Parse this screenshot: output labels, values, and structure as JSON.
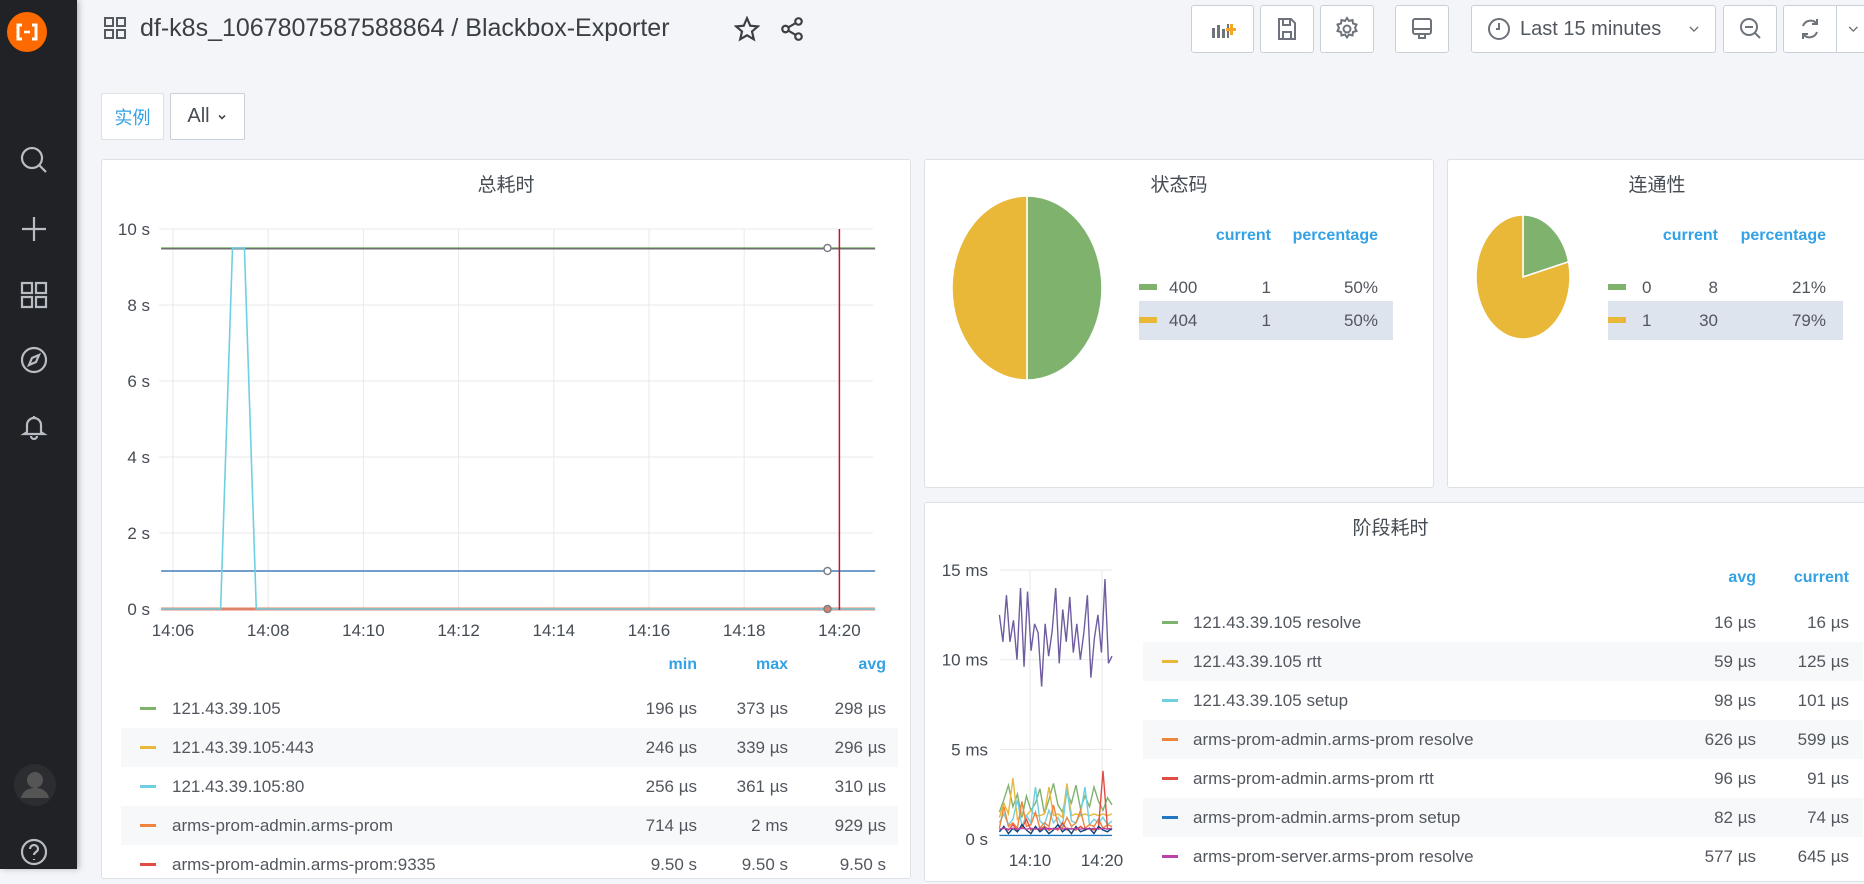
{
  "sidebar": {
    "items": [
      {
        "name": "search",
        "icon": "search-icon"
      },
      {
        "name": "create",
        "icon": "plus-icon"
      },
      {
        "name": "dashboards",
        "icon": "grid-icon"
      },
      {
        "name": "explore",
        "icon": "compass-icon"
      },
      {
        "name": "alerting",
        "icon": "bell-icon"
      }
    ],
    "bottom": [
      {
        "icon": "avatar"
      },
      {
        "icon": "help-icon"
      }
    ]
  },
  "header": {
    "title": "df-k8s_1067807587588864 / Blackbox-Exporter",
    "time_range": "Last 15 minutes"
  },
  "variables": {
    "label": "实例",
    "value": "All"
  },
  "colors": {
    "accent": "#33a2e5",
    "brand": "#ff6a00",
    "green": "#7eb26d",
    "yellow": "#eab839",
    "highlight": "#dde4ed"
  },
  "panels": {
    "total": {
      "title": "总耗时",
      "headers": [
        "min",
        "max",
        "avg"
      ],
      "rows": [
        {
          "name": "121.43.39.105",
          "color": "#7eb26d",
          "min": "196 µs",
          "max": "373 µs",
          "avg": "298 µs"
        },
        {
          "name": "121.43.39.105:443",
          "color": "#eab839",
          "min": "246 µs",
          "max": "339 µs",
          "avg": "296 µs"
        },
        {
          "name": "121.43.39.105:80",
          "color": "#6ed0e0",
          "min": "256 µs",
          "max": "361 µs",
          "avg": "310 µs"
        },
        {
          "name": "arms-prom-admin.arms-prom",
          "color": "#ef843c",
          "min": "714 µs",
          "max": "2 ms",
          "avg": "929 µs"
        },
        {
          "name": "arms-prom-admin.arms-prom:9335",
          "color": "#e24d42",
          "min": "9.50 s",
          "max": "9.50 s",
          "avg": "9.50 s"
        }
      ]
    },
    "status": {
      "title": "状态码",
      "headers": [
        "current",
        "percentage"
      ],
      "rows": [
        {
          "name": "400",
          "color": "#7eb26d",
          "current": "1",
          "percentage": "50%"
        },
        {
          "name": "404",
          "color": "#eab839",
          "current": "1",
          "percentage": "50%"
        }
      ]
    },
    "conn": {
      "title": "连通性",
      "headers": [
        "current",
        "percentage"
      ],
      "rows": [
        {
          "name": "0",
          "color": "#7eb26d",
          "current": "8",
          "percentage": "21%"
        },
        {
          "name": "1",
          "color": "#eab839",
          "current": "30",
          "percentage": "79%"
        }
      ]
    },
    "stage": {
      "title": "阶段耗时",
      "headers": [
        "avg",
        "current"
      ],
      "rows": [
        {
          "name": "121.43.39.105 resolve",
          "color": "#7eb26d",
          "avg": "16 µs",
          "current": "16 µs"
        },
        {
          "name": "121.43.39.105 rtt",
          "color": "#eab839",
          "avg": "59 µs",
          "current": "125 µs"
        },
        {
          "name": "121.43.39.105 setup",
          "color": "#6ed0e0",
          "avg": "98 µs",
          "current": "101 µs"
        },
        {
          "name": "arms-prom-admin.arms-prom resolve",
          "color": "#ef843c",
          "avg": "626 µs",
          "current": "599 µs"
        },
        {
          "name": "arms-prom-admin.arms-prom rtt",
          "color": "#e24d42",
          "avg": "96 µs",
          "current": "91 µs"
        },
        {
          "name": "arms-prom-admin.arms-prom setup",
          "color": "#1f78c1",
          "avg": "82 µs",
          "current": "74 µs"
        },
        {
          "name": "arms-prom-server.arms-prom resolve",
          "color": "#ba43a9",
          "avg": "577 µs",
          "current": "645 µs"
        }
      ]
    }
  },
  "chart_data": [
    {
      "type": "line",
      "title": "总耗时",
      "x_range": [
        "14:05:45",
        "14:20:45"
      ],
      "x_ticks": [
        "14:06",
        "14:08",
        "14:10",
        "14:12",
        "14:14",
        "14:16",
        "14:18",
        "14:20"
      ],
      "y_ticks": [
        "0 s",
        "2 s",
        "4 s",
        "6 s",
        "8 s",
        "10 s"
      ],
      "ylim": [
        0,
        10
      ],
      "y_unit": "s",
      "grid": true,
      "series": [
        {
          "color": "#7eb26d",
          "x": [
            "14:05:45",
            "14:20:45"
          ],
          "y": [
            9.5,
            9.5
          ]
        },
        {
          "color": "#6d6f73",
          "x": [
            "14:05:45",
            "14:20:45"
          ],
          "y": [
            9.48,
            9.48
          ]
        },
        {
          "color": "#447ebc",
          "x": [
            "14:05:45",
            "14:20:45"
          ],
          "y": [
            1.0,
            1.0
          ]
        },
        {
          "color": "#e0826a",
          "x": [
            "14:05:45",
            "14:20:45"
          ],
          "y": [
            0,
            0
          ]
        },
        {
          "color": "#6ed0e0",
          "x": [
            "14:05:45",
            "14:07:00",
            "14:07:15",
            "14:07:30",
            "14:07:45",
            "14:20:45"
          ],
          "y": [
            0,
            0,
            9.5,
            9.5,
            0,
            0
          ]
        }
      ],
      "markers": [
        {
          "x": "14:19:45",
          "y": 9.5
        },
        {
          "x": "14:19:45",
          "y": 1.0
        },
        {
          "x": "14:19:45",
          "y": 0
        }
      ],
      "annotations": [
        {
          "x": "14:20",
          "color": "#c4162a"
        }
      ]
    },
    {
      "type": "pie",
      "title": "状态码",
      "labels": [
        "400",
        "404"
      ],
      "values": [
        1,
        1
      ],
      "colors": [
        "#7eb26d",
        "#eab839"
      ]
    },
    {
      "type": "pie",
      "title": "连通性",
      "labels": [
        "0",
        "1"
      ],
      "values": [
        8,
        30
      ],
      "colors": [
        "#7eb26d",
        "#eab839"
      ]
    },
    {
      "type": "line",
      "title": "阶段耗时",
      "x_range": [
        "14:05:45",
        "14:20:45"
      ],
      "x_ticks": [
        "14:10",
        "14:20"
      ],
      "y_ticks": [
        "0 s",
        "5 ms",
        "10 ms",
        "15 ms"
      ],
      "ylim": [
        0,
        15
      ],
      "y_unit": "ms",
      "grid": true,
      "series": [
        {
          "color": "#705da0",
          "y": [
            12.5,
            11,
            13.6,
            11,
            12.2,
            10,
            14,
            9.6,
            13.8,
            10.5,
            12,
            11.5,
            8.5,
            12,
            10.2,
            11.6,
            14,
            9.8,
            12.8,
            11,
            13.5,
            10.4,
            12,
            10,
            11.5,
            13.6,
            9,
            11.2,
            12.5,
            10.4,
            14.5,
            9.8,
            10.2
          ]
        },
        {
          "color": "#7eb26d",
          "y": [
            1.5,
            2.2,
            3,
            1.8,
            2.5,
            1.2,
            2.4,
            1.6,
            2,
            2.8,
            1.4,
            2.2,
            3.1,
            1.9,
            1.5,
            2.6,
            2,
            3,
            1.7,
            2.4,
            1.8,
            2.9,
            2.1,
            1.6,
            2.3,
            1.9
          ]
        },
        {
          "color": "#eab839",
          "y": [
            1.2,
            2,
            1.4,
            3.4,
            1.1,
            1.4,
            1.3,
            1.6,
            1.3,
            1.3,
            1.4,
            2.9,
            1.3,
            1.4,
            1.2,
            3.1,
            1.3,
            1.4,
            1.3,
            1.4,
            1.3,
            1.4,
            1.3,
            1.4,
            1.3,
            1.4
          ]
        },
        {
          "color": "#6ed0e0",
          "y": [
            0.9,
            1.4,
            0.8,
            1.1,
            2.2,
            0.7,
            1.3,
            0.9,
            2.9,
            1,
            0.8,
            1.6,
            0.9,
            1.2,
            0.7,
            2.8,
            1,
            0.9,
            1.4,
            2.9,
            0.8,
            1.1,
            0.9,
            1.2,
            0.8,
            1
          ]
        },
        {
          "color": "#ef843c",
          "y": [
            0.6,
            1.8,
            0.7,
            0.9,
            0.6,
            2.1,
            0.7,
            0.8,
            1.5,
            0.6,
            0.9,
            0.7,
            1.9,
            0.8,
            0.6,
            1.2,
            0.7,
            0.9,
            1.6,
            0.6,
            0.8,
            0.7,
            1.1,
            0.6,
            0.8,
            0.7
          ]
        },
        {
          "color": "#e24d42",
          "y": [
            0.5,
            0.6,
            0.5,
            0.8,
            0.5,
            0.6,
            1.1,
            0.5,
            0.6,
            0.5,
            0.7,
            0.5,
            0.6,
            0.5,
            0.9,
            0.5,
            0.6,
            0.5,
            0.7,
            0.5,
            0.6,
            0.5,
            0.6,
            3.8,
            0.6,
            0.5
          ]
        },
        {
          "color": "#0a437c",
          "y": [
            0.4,
            0.7,
            0.3,
            0.6,
            0.4,
            0.8,
            0.5,
            0.3,
            0.7,
            0.4,
            0.6,
            0.3,
            0.5,
            0.8,
            0.4,
            0.6,
            0.3,
            0.7,
            0.4,
            0.5,
            0.6,
            0.3,
            0.7,
            0.5,
            0.4,
            0.6
          ]
        },
        {
          "color": "#1f78c1",
          "y": [
            0.2,
            0.2,
            0.2,
            0.2,
            0.2,
            0.2,
            0.2,
            0.2,
            0.2,
            0.2,
            0.2,
            0.2,
            0.2,
            0.2,
            0.2,
            0.2,
            0.2,
            0.2,
            0.2,
            0.2,
            0.2,
            0.2,
            0.2,
            0.2,
            0.2,
            0.2
          ]
        },
        {
          "color": "#ba43a9",
          "y": [
            0.55,
            0.6,
            0.55,
            0.6,
            0.55,
            0.6,
            0.55,
            0.6,
            0.55,
            0.6,
            0.55,
            0.6,
            0.55,
            0.6,
            0.55,
            0.6,
            0.55,
            0.6,
            0.55,
            0.6,
            0.55,
            0.6,
            0.55,
            0.6,
            0.55,
            0.6
          ]
        }
      ]
    }
  ]
}
